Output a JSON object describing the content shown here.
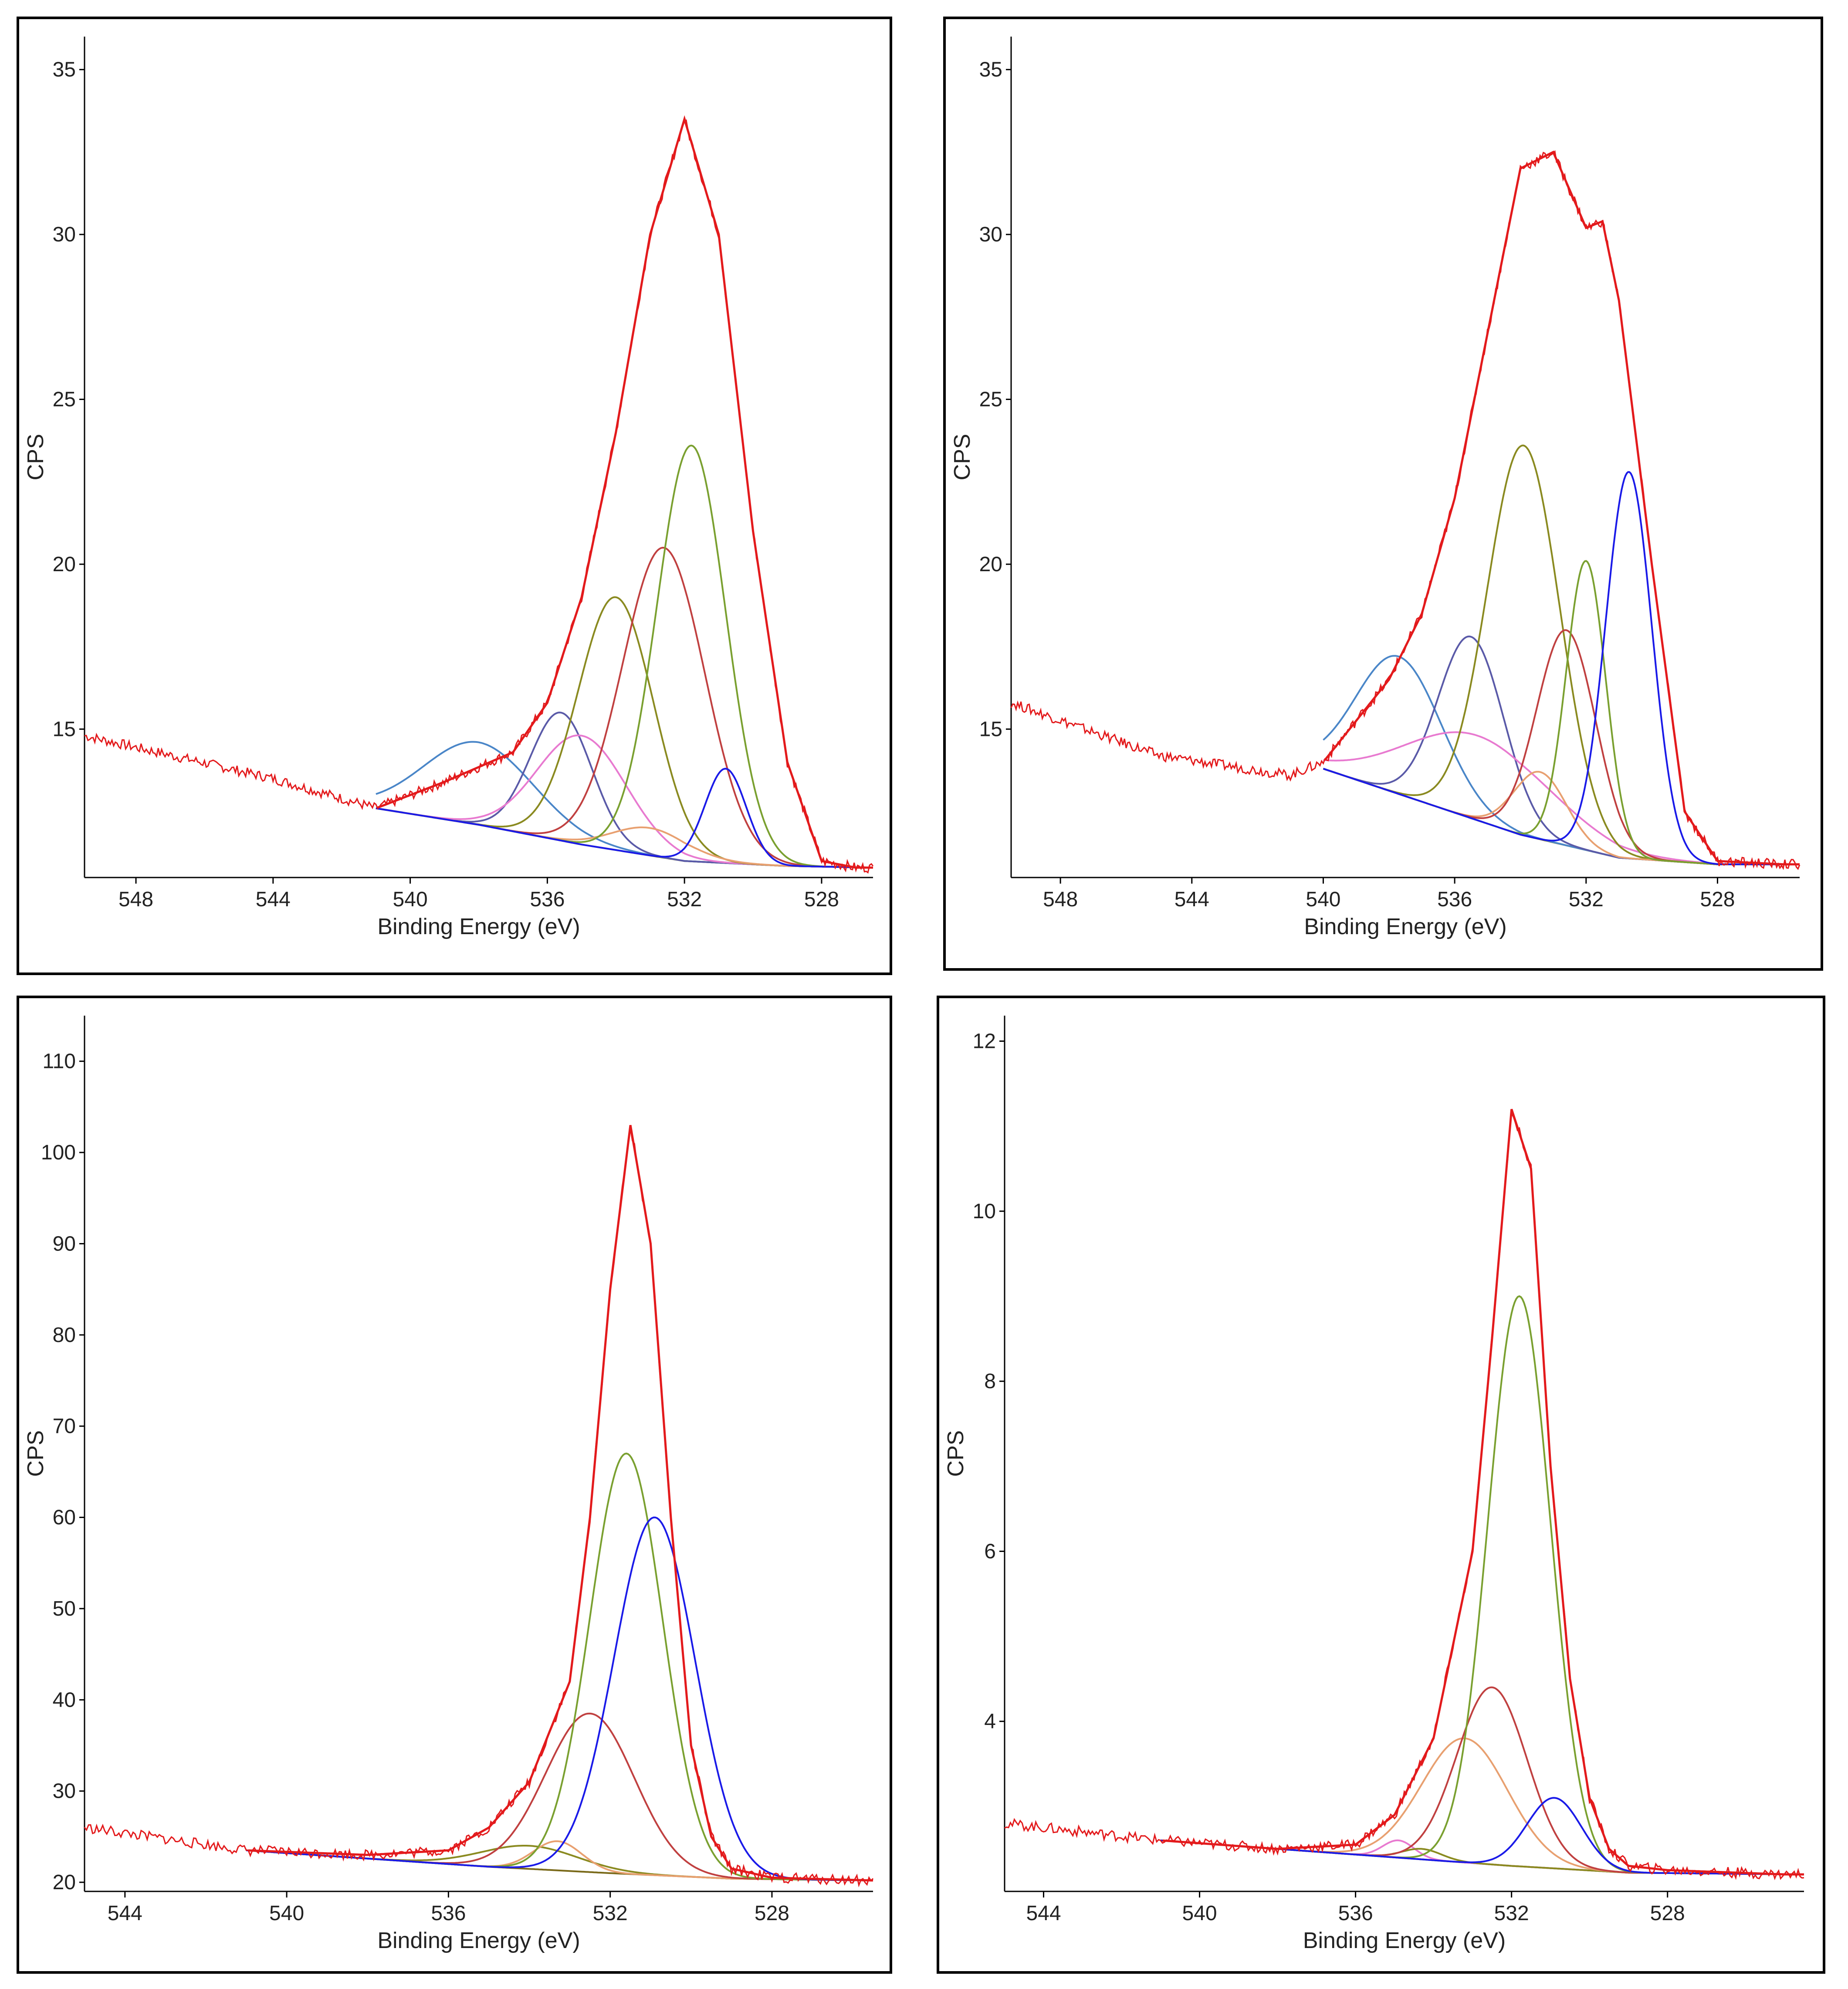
{
  "colors": {
    "envelope": "#e31a1c",
    "raw": "#e31a1c",
    "background": "#7a6a1a",
    "axis": "#000000"
  },
  "chart_data": [
    {
      "type": "line",
      "xlabel": "Binding Energy (eV)",
      "ylabel": "CPS",
      "xlim": [
        549.5,
        526.5
      ],
      "ylim": [
        10.5,
        36
      ],
      "xticks": [
        548,
        544,
        540,
        536,
        532,
        528
      ],
      "yticks": [
        15,
        20,
        25,
        30,
        35
      ],
      "envelope": {
        "x": [
          549.5,
          544,
          541,
          539,
          537,
          536,
          535,
          534,
          533,
          532,
          531,
          530,
          529,
          528,
          527,
          526.5
        ],
        "y": [
          14.8,
          13.5,
          12.6,
          13.4,
          14.3,
          15.8,
          19.0,
          24.0,
          30.0,
          33.5,
          30.0,
          21.0,
          14.0,
          11.0,
          10.8,
          10.8
        ]
      },
      "baseline": {
        "x": [
          541,
          538,
          535,
          532,
          529,
          526.5
        ],
        "y": [
          12.6,
          12.1,
          11.5,
          11.0,
          10.85,
          10.8
        ]
      },
      "components": [
        {
          "color": "#4a86c8",
          "center": 538.0,
          "height": 14.6,
          "width": 1.6
        },
        {
          "color": "#5a5aa8",
          "center": 535.6,
          "height": 15.5,
          "width": 0.9
        },
        {
          "color": "#e87ad0",
          "center": 535.0,
          "height": 14.8,
          "width": 1.3
        },
        {
          "color": "#8a8a20",
          "center": 534.0,
          "height": 19.0,
          "width": 1.1
        },
        {
          "color": "#e8a070",
          "center": 533.0,
          "height": 12.0,
          "width": 1.1
        },
        {
          "color": "#c04040",
          "center": 532.6,
          "height": 20.5,
          "width": 1.2
        },
        {
          "color": "#7aa030",
          "center": 531.8,
          "height": 23.6,
          "width": 1.0
        },
        {
          "color": "#1a1ae8",
          "center": 530.8,
          "height": 13.8,
          "width": 0.6
        }
      ]
    },
    {
      "type": "line",
      "xlabel": "Binding Energy (eV)",
      "ylabel": "CPS",
      "xlim": [
        549.5,
        525.5
      ],
      "ylim": [
        10.5,
        36
      ],
      "xticks": [
        548,
        544,
        540,
        536,
        532,
        528
      ],
      "yticks": [
        15,
        20,
        25,
        30,
        35
      ],
      "envelope": {
        "x": [
          549.5,
          545,
          541,
          540,
          538,
          537,
          536,
          535,
          534,
          533,
          532,
          531.5,
          531,
          530,
          529,
          528,
          526,
          525.5
        ],
        "y": [
          15.8,
          14.2,
          13.6,
          14.0,
          16.5,
          18.5,
          22.0,
          27.0,
          32.0,
          32.5,
          30.2,
          30.4,
          28.0,
          20.0,
          12.5,
          11.0,
          10.9,
          10.9
        ]
      },
      "baseline": {
        "x": [
          540,
          537,
          534,
          531,
          528,
          525.5
        ],
        "y": [
          13.8,
          12.8,
          11.8,
          11.1,
          10.9,
          10.9
        ]
      },
      "components": [
        {
          "color": "#4a86c8",
          "center": 537.7,
          "height": 17.2,
          "width": 1.3
        },
        {
          "color": "#5a5aa8",
          "center": 535.5,
          "height": 17.8,
          "width": 1.0
        },
        {
          "color": "#e87ad0",
          "center": 535.3,
          "height": 14.8,
          "width": 2.2
        },
        {
          "color": "#8a8a20",
          "center": 533.9,
          "height": 23.6,
          "width": 1.1
        },
        {
          "color": "#e8a070",
          "center": 533.4,
          "height": 13.7,
          "width": 0.8
        },
        {
          "color": "#c04040",
          "center": 532.6,
          "height": 18.0,
          "width": 0.9
        },
        {
          "color": "#7aa030",
          "center": 532.0,
          "height": 20.1,
          "width": 0.6
        },
        {
          "color": "#1a1ae8",
          "center": 530.7,
          "height": 22.8,
          "width": 0.7
        }
      ]
    },
    {
      "type": "line",
      "xlabel": "Binding Energy (eV)",
      "ylabel": "CPS",
      "xlim": [
        545,
        525.5
      ],
      "ylim": [
        19,
        115
      ],
      "xticks": [
        544,
        540,
        536,
        532,
        528
      ],
      "yticks": [
        20,
        30,
        40,
        50,
        60,
        70,
        80,
        90,
        100,
        110
      ],
      "envelope": {
        "x": [
          545,
          541,
          538,
          536,
          535,
          534,
          533,
          532.5,
          532,
          531.5,
          531,
          530.5,
          530,
          529.5,
          529,
          528,
          525.5
        ],
        "y": [
          26.0,
          23.5,
          23.0,
          23.5,
          26.0,
          31.0,
          42.0,
          60.0,
          85.0,
          103.0,
          90.0,
          60.0,
          35.0,
          25.0,
          21.5,
          20.5,
          20.2
        ]
      },
      "baseline": {
        "x": [
          541,
          538,
          535,
          532,
          529,
          525.5
        ],
        "y": [
          23.5,
          22.6,
          21.7,
          21.0,
          20.4,
          20.2
        ]
      },
      "components": [
        {
          "color": "#8a8a20",
          "center": 534.0,
          "height": 24.0,
          "width": 1.2
        },
        {
          "color": "#e8a070",
          "center": 533.3,
          "height": 24.5,
          "width": 0.6
        },
        {
          "color": "#c04040",
          "center": 532.5,
          "height": 38.5,
          "width": 1.1
        },
        {
          "color": "#7aa030",
          "center": 531.6,
          "height": 67.0,
          "width": 0.9
        },
        {
          "color": "#1a1ae8",
          "center": 530.9,
          "height": 60.0,
          "width": 1.0
        }
      ]
    },
    {
      "type": "line",
      "xlabel": "Binding Energy (eV)",
      "ylabel": "CPS",
      "xlim": [
        545,
        524.5
      ],
      "ylim": [
        2.0,
        12.3
      ],
      "xticks": [
        544,
        540,
        536,
        532,
        528
      ],
      "yticks": [
        4,
        6,
        8,
        10,
        12
      ],
      "envelope": {
        "x": [
          545,
          541,
          538,
          536,
          535,
          534,
          533,
          532.5,
          532,
          531.5,
          531,
          530.5,
          530,
          529.5,
          529,
          528,
          525,
          524.5
        ],
        "y": [
          2.8,
          2.6,
          2.5,
          2.55,
          2.9,
          3.8,
          6.0,
          8.5,
          11.2,
          10.5,
          7.0,
          4.5,
          3.1,
          2.5,
          2.3,
          2.25,
          2.2,
          2.2
        ]
      },
      "baseline": {
        "x": [
          541,
          538,
          535,
          532,
          529,
          524.5
        ],
        "y": [
          2.6,
          2.5,
          2.4,
          2.3,
          2.22,
          2.2
        ]
      },
      "components": [
        {
          "color": "#e87ad0",
          "center": 534.9,
          "height": 2.6,
          "width": 0.4
        },
        {
          "color": "#8a8a20",
          "center": 534.3,
          "height": 2.5,
          "width": 0.5
        },
        {
          "color": "#e8a070",
          "center": 533.2,
          "height": 3.8,
          "width": 1.1
        },
        {
          "color": "#c04040",
          "center": 532.5,
          "height": 4.4,
          "width": 0.9
        },
        {
          "color": "#7aa030",
          "center": 531.8,
          "height": 9.0,
          "width": 0.8
        },
        {
          "color": "#1a1ae8",
          "center": 530.9,
          "height": 3.1,
          "width": 0.7
        }
      ]
    }
  ]
}
